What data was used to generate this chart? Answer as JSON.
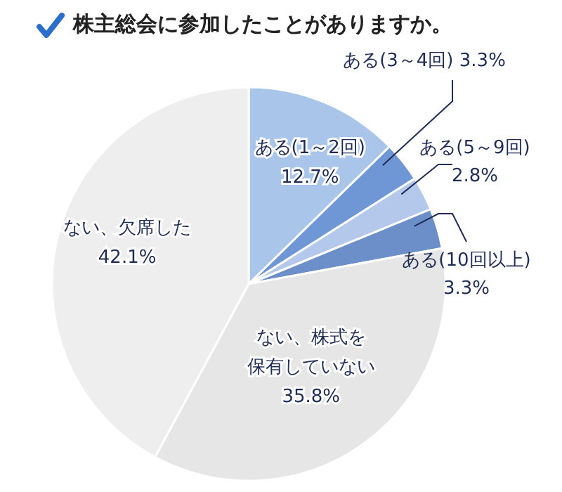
{
  "chart_data": {
    "type": "pie",
    "title": "株主総会に参加したことがありますか。",
    "categories": [
      "ある(1～2回)",
      "ある(3～4回)",
      "ある(5～9回)",
      "ある(10回以上)",
      "ない、株式を保有していない",
      "ない、欠席した"
    ],
    "values": [
      12.7,
      3.3,
      2.8,
      3.3,
      35.8,
      42.1
    ],
    "value_labels": [
      "12.7%",
      "3.3%",
      "2.8%",
      "3.3%",
      "35.8%",
      "42.1%"
    ],
    "colors": [
      "#a9c6ea",
      "#6f97d6",
      "#b3c8ea",
      "#6d8fc9",
      "#e6e6e6",
      "#eeeeee"
    ]
  }
}
